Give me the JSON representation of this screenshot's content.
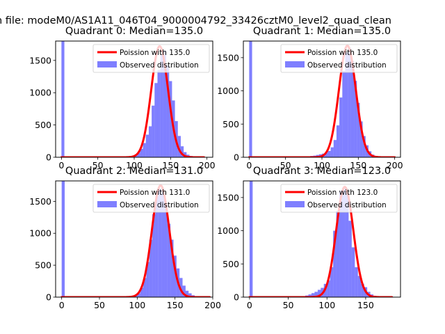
{
  "suptitle": "n file: modeM0/AS1A11_046T04_9000004792_33426cztM0_level2_quad_clean",
  "colors": {
    "hist": "#0000ff",
    "fit": "#ff0000",
    "axis": "#000000",
    "bg": "#ffffff"
  },
  "chart_data": [
    {
      "type": "bar+line",
      "title": "Quadrant 0: Median=135.0",
      "xlim": [
        -8,
        208
      ],
      "ylim": [
        0,
        1800
      ],
      "xticks": [
        0,
        50,
        100,
        150,
        200
      ],
      "xtick_labels": [
        "0",
        "50",
        "100",
        "150",
        "200"
      ],
      "yticks": [
        0,
        500,
        1000,
        1500
      ],
      "ytick_labels": [
        "0",
        "500",
        "1000",
        "1500"
      ],
      "legend": [
        "Poission with 135.0",
        "Observed distribution"
      ],
      "legend_position": "upper-right",
      "fit": {
        "label": "Poission with 135.0",
        "mean": 135.0,
        "peak": 1720,
        "x_range": [
          0,
          196
        ]
      },
      "hist": {
        "label": "Observed distribution",
        "bin_width": 4,
        "bin_edges_start": [
          0,
          4,
          8,
          12,
          16,
          20,
          24,
          28,
          32,
          36,
          40,
          44,
          48,
          52,
          56,
          60,
          64,
          68,
          72,
          76,
          80,
          84,
          88,
          92,
          96,
          100,
          104,
          108,
          112,
          116,
          120,
          124,
          128,
          132,
          136,
          140,
          144,
          148,
          152,
          156,
          160,
          164,
          168,
          172,
          176,
          180,
          184,
          188,
          192
        ],
        "counts": [
          1800,
          0,
          0,
          0,
          0,
          0,
          0,
          0,
          0,
          0,
          0,
          0,
          0,
          0,
          0,
          0,
          0,
          0,
          0,
          0,
          2,
          3,
          6,
          10,
          20,
          40,
          70,
          130,
          220,
          350,
          480,
          800,
          1150,
          1350,
          1580,
          1650,
          1420,
          1180,
          880,
          560,
          330,
          170,
          80,
          40,
          20,
          10,
          5,
          2,
          1
        ]
      }
    },
    {
      "type": "bar+line",
      "title": "Quadrant 1: Median=135.0",
      "xlim": [
        -8,
        208
      ],
      "ylim": [
        0,
        1750
      ],
      "xticks": [
        0,
        50,
        100,
        150,
        200
      ],
      "xtick_labels": [
        "0",
        "50",
        "100",
        "150",
        "200"
      ],
      "yticks": [
        0,
        500,
        1000,
        1500
      ],
      "ytick_labels": [
        "0",
        "500",
        "1000",
        "1500"
      ],
      "legend": [
        "Poission with 135.0",
        "Observed distribution"
      ],
      "legend_position": "upper-right",
      "fit": {
        "label": "Poission with 135.0",
        "mean": 135.0,
        "peak": 1680,
        "x_range": [
          0,
          200
        ]
      },
      "hist": {
        "label": "Observed distribution",
        "bin_width": 4,
        "bin_edges_start": [
          0,
          4,
          8,
          12,
          16,
          20,
          24,
          28,
          32,
          36,
          40,
          44,
          48,
          52,
          56,
          60,
          64,
          68,
          72,
          76,
          80,
          84,
          88,
          92,
          96,
          100,
          104,
          108,
          112,
          116,
          120,
          124,
          128,
          132,
          136,
          140,
          144,
          148,
          152,
          156,
          160,
          164,
          168,
          172,
          176,
          180,
          184,
          188,
          192,
          196
        ],
        "counts": [
          1750,
          0,
          0,
          0,
          0,
          0,
          0,
          0,
          0,
          0,
          0,
          0,
          0,
          3,
          4,
          5,
          6,
          8,
          10,
          12,
          15,
          20,
          25,
          35,
          45,
          55,
          70,
          95,
          150,
          260,
          480,
          900,
          1300,
          1580,
          1650,
          1450,
          1150,
          820,
          540,
          320,
          180,
          90,
          40,
          20,
          10,
          5,
          2,
          1,
          0,
          0
        ]
      }
    },
    {
      "type": "bar+line",
      "title": "Quadrant 2: Median=131.0",
      "xlim": [
        -8,
        200
      ],
      "ylim": [
        0,
        1820
      ],
      "xticks": [
        0,
        50,
        100,
        150,
        200
      ],
      "xtick_labels": [
        "0",
        "50",
        "100",
        "150",
        "200"
      ],
      "yticks": [
        0,
        500,
        1000,
        1500
      ],
      "ytick_labels": [
        "0",
        "500",
        "1000",
        "1500"
      ],
      "legend": [
        "Poission with 131.0",
        "Observed distribution"
      ],
      "legend_position": "upper-right",
      "fit": {
        "label": "Poission with 131.0",
        "mean": 131.0,
        "peak": 1750,
        "x_range": [
          0,
          196
        ]
      },
      "hist": {
        "label": "Observed distribution",
        "bin_width": 4,
        "bin_edges_start": [
          0,
          4,
          8,
          12,
          16,
          20,
          24,
          28,
          32,
          36,
          40,
          44,
          48,
          52,
          56,
          60,
          64,
          68,
          72,
          76,
          80,
          84,
          88,
          92,
          96,
          100,
          104,
          108,
          112,
          116,
          120,
          124,
          128,
          132,
          136,
          140,
          144,
          148,
          152,
          156,
          160,
          164,
          168,
          172,
          176,
          180,
          184,
          188,
          192
        ],
        "counts": [
          1820,
          0,
          0,
          0,
          0,
          0,
          0,
          0,
          0,
          0,
          0,
          0,
          0,
          0,
          0,
          0,
          0,
          0,
          0,
          0,
          3,
          5,
          8,
          15,
          30,
          60,
          150,
          300,
          550,
          900,
          1300,
          1580,
          1700,
          1650,
          1450,
          1150,
          900,
          650,
          450,
          300,
          180,
          100,
          60,
          30,
          15,
          8,
          4,
          2,
          1
        ]
      }
    },
    {
      "type": "bar+line",
      "title": "Quadrant 3: Median=123.0",
      "xlim": [
        -8,
        195
      ],
      "ylim": [
        0,
        1750
      ],
      "xticks": [
        0,
        50,
        100,
        150
      ],
      "xtick_labels": [
        "0",
        "50",
        "100",
        "150"
      ],
      "yticks": [
        0,
        500,
        1000,
        1500
      ],
      "ytick_labels": [
        "0",
        "500",
        "1000",
        "1500"
      ],
      "legend": [
        "Poission with 123.0",
        "Observed distribution"
      ],
      "legend_position": "upper-right",
      "fit": {
        "label": "Poission with 123.0",
        "mean": 123.0,
        "peak": 1660,
        "x_range": [
          0,
          184
        ]
      },
      "hist": {
        "label": "Observed distribution",
        "bin_width": 4,
        "bin_edges_start": [
          0,
          4,
          8,
          12,
          16,
          20,
          24,
          28,
          32,
          36,
          40,
          44,
          48,
          52,
          56,
          60,
          64,
          68,
          72,
          76,
          80,
          84,
          88,
          92,
          96,
          100,
          104,
          108,
          112,
          116,
          120,
          124,
          128,
          132,
          136,
          140,
          144,
          148,
          152,
          156,
          160,
          164,
          168,
          172,
          176,
          180
        ],
        "counts": [
          1750,
          0,
          0,
          0,
          0,
          0,
          0,
          0,
          0,
          0,
          0,
          0,
          0,
          0,
          0,
          5,
          10,
          15,
          25,
          40,
          60,
          80,
          110,
          140,
          200,
          250,
          450,
          1000,
          1300,
          1600,
          1650,
          1550,
          1150,
          750,
          450,
          320,
          200,
          150,
          80,
          40,
          20,
          10,
          5,
          2,
          1,
          0
        ]
      }
    }
  ]
}
